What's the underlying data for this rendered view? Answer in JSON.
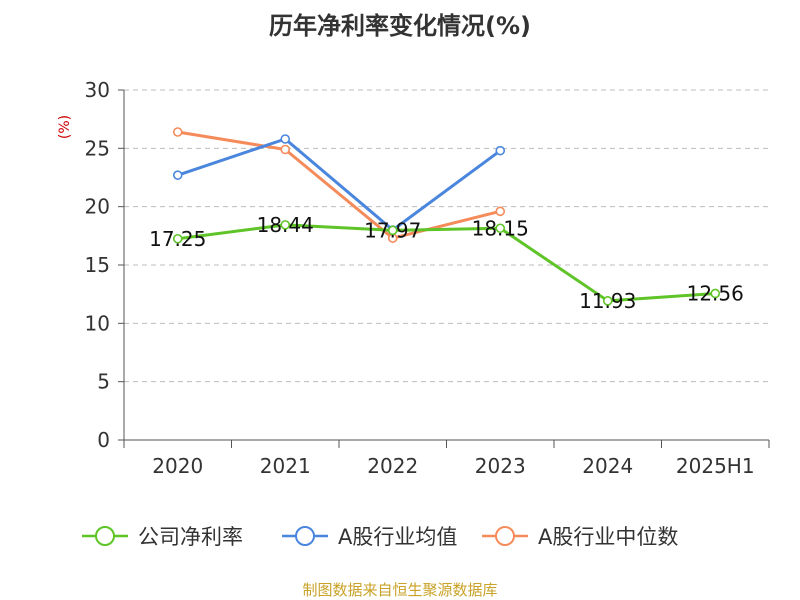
{
  "colors": {
    "net_margin": "#5ec427",
    "industry_avg": "#4a86dd",
    "industry_median": "#f58b5a",
    "unit": "#cc0000",
    "source": "#c9a227"
  },
  "chart_data": {
    "type": "line",
    "title": "历年净利率变化情况(%)",
    "ylabel": "(%)",
    "categories": [
      "2020",
      "2021",
      "2022",
      "2023",
      "2024",
      "2025H1"
    ],
    "ylim": [
      0,
      30
    ],
    "yticks": [
      0,
      5,
      10,
      15,
      20,
      25,
      30
    ],
    "grid": true,
    "legend_position": "bottom",
    "series": [
      {
        "name": "公司净利率",
        "color": "#5ec427",
        "values": [
          17.25,
          18.44,
          17.97,
          18.15,
          11.93,
          12.56
        ],
        "labels": [
          "17.25",
          "18.44",
          "17.97",
          "18.15",
          "11.93",
          "12.56"
        ]
      },
      {
        "name": "A股行业均值",
        "color": "#4a86dd",
        "values": [
          22.7,
          25.8,
          18.0,
          24.8,
          null,
          null
        ]
      },
      {
        "name": "A股行业中位数",
        "color": "#f58b5a",
        "values": [
          26.4,
          24.9,
          17.3,
          19.6,
          null,
          null
        ]
      }
    ]
  },
  "source_text": "制图数据来自恒生聚源数据库"
}
